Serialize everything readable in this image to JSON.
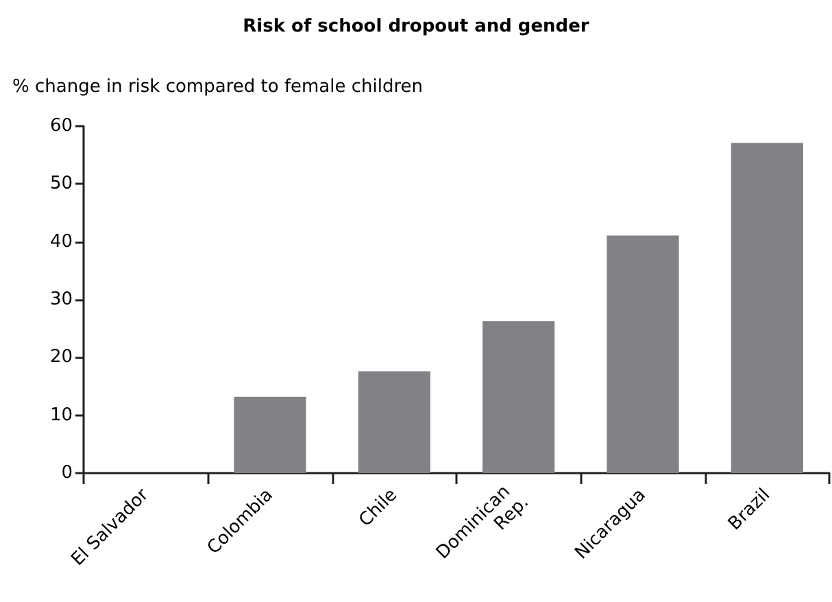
{
  "chart_data": {
    "type": "bar",
    "title": "Risk of school dropout and gender",
    "ylabel": "% change in risk compared to female children",
    "categories": [
      "El Salvador",
      "Colombia",
      "Chile",
      "Dominican Rep.",
      "Nicaragua",
      "Brazil"
    ],
    "values": [
      0,
      13.2,
      17.6,
      26.3,
      41.1,
      57.1
    ],
    "color": "#808285",
    "ylim": [
      0,
      60
    ],
    "yticks": [
      0,
      10,
      20,
      30,
      40,
      50,
      60
    ],
    "grid": false
  }
}
